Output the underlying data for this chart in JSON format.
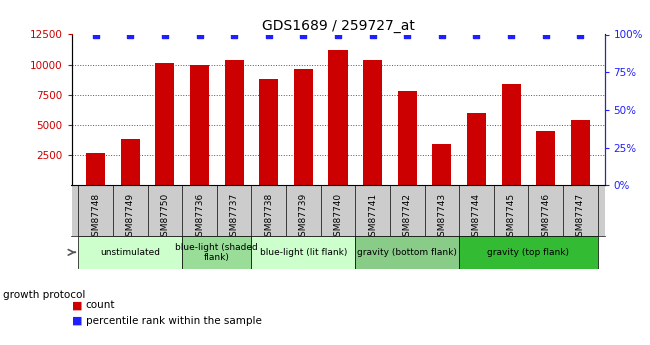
{
  "title": "GDS1689 / 259727_at",
  "samples": [
    "GSM87748",
    "GSM87749",
    "GSM87750",
    "GSM87736",
    "GSM87737",
    "GSM87738",
    "GSM87739",
    "GSM87740",
    "GSM87741",
    "GSM87742",
    "GSM87743",
    "GSM87744",
    "GSM87745",
    "GSM87746",
    "GSM87747"
  ],
  "counts": [
    2700,
    3800,
    10100,
    10000,
    10400,
    8800,
    9600,
    11200,
    10400,
    7800,
    3450,
    6000,
    8400,
    4500,
    5400
  ],
  "bar_color": "#cc0000",
  "dot_color": "#1f1fff",
  "left_yaxis_color": "#cc0000",
  "right_yaxis_color": "#1f1fff",
  "ylim_left": [
    0,
    12500
  ],
  "ylim_right": [
    0,
    100
  ],
  "left_yticks": [
    2500,
    5000,
    7500,
    10000,
    12500
  ],
  "right_yticks": [
    0,
    25,
    50,
    75,
    100
  ],
  "right_ytick_labels": [
    "0%",
    "25%",
    "50%",
    "75%",
    "100%"
  ],
  "groups": [
    {
      "label": "unstimulated",
      "start": 0,
      "end": 3,
      "color": "#ccffcc"
    },
    {
      "label": "blue-light (shaded\nflank)",
      "start": 3,
      "end": 5,
      "color": "#99dd99"
    },
    {
      "label": "blue-light (lit flank)",
      "start": 5,
      "end": 8,
      "color": "#ccffcc"
    },
    {
      "label": "gravity (bottom flank)",
      "start": 8,
      "end": 11,
      "color": "#88cc88"
    },
    {
      "label": "gravity (top flank)",
      "start": 11,
      "end": 15,
      "color": "#33bb33"
    }
  ],
  "growth_protocol_label": "growth protocol",
  "legend_count_label": "count",
  "legend_percentile_label": "percentile rank within the sample",
  "bar_width": 0.55,
  "sample_box_color": "#cccccc",
  "chart_bg": "#ffffff"
}
